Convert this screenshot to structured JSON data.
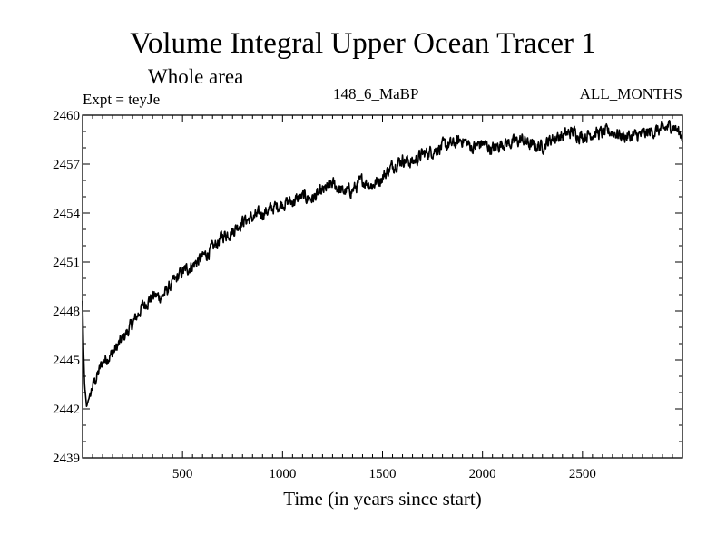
{
  "chart_data": {
    "type": "line",
    "title": "Volume Integral Upper Ocean Tracer 1",
    "subtitle": "Whole area",
    "experiment_label": "Expt = teyJe",
    "run_label": "148_6_MaBP",
    "months_label": "ALL_MONTHS",
    "xlabel": "Time (in years since start)",
    "ylabel": "",
    "xlim": [
      0,
      3000
    ],
    "ylim": [
      2439,
      2460
    ],
    "x_ticks": [
      500,
      1000,
      1500,
      2000,
      2500
    ],
    "x_tick_labels": [
      "500",
      "1000",
      "1500",
      "2000",
      "2500"
    ],
    "y_ticks": [
      2439,
      2442,
      2445,
      2448,
      2451,
      2454,
      2457,
      2460
    ],
    "y_tick_labels": [
      "2439",
      "2442",
      "2445",
      "2448",
      "2451",
      "2454",
      "2457",
      "2460"
    ],
    "grid": false,
    "series": [
      {
        "name": "Tracer 1 volume integral",
        "color": "#000000",
        "x": [
          0,
          5,
          10,
          20,
          30,
          50,
          80,
          100,
          150,
          200,
          250,
          300,
          350,
          400,
          450,
          500,
          550,
          600,
          650,
          700,
          750,
          800,
          850,
          900,
          950,
          1000,
          1050,
          1100,
          1150,
          1200,
          1250,
          1300,
          1350,
          1400,
          1450,
          1500,
          1550,
          1600,
          1650,
          1700,
          1750,
          1800,
          1850,
          1900,
          1950,
          2000,
          2050,
          2100,
          2150,
          2200,
          2250,
          2300,
          2350,
          2400,
          2450,
          2500,
          2550,
          2600,
          2650,
          2700,
          2750,
          2800,
          2850,
          2900,
          2950,
          3000
        ],
        "values": [
          2448.6,
          2445.5,
          2443.5,
          2442.1,
          2442.6,
          2443.4,
          2444.2,
          2444.9,
          2445.4,
          2446.3,
          2447.2,
          2448.3,
          2448.9,
          2448.9,
          2449.7,
          2450.4,
          2450.8,
          2451.3,
          2451.8,
          2452.6,
          2452.9,
          2453.5,
          2453.7,
          2454.0,
          2454.3,
          2454.6,
          2454.7,
          2455.0,
          2454.9,
          2455.3,
          2455.8,
          2455.3,
          2455.4,
          2456.0,
          2455.7,
          2456.2,
          2456.9,
          2457.3,
          2457.1,
          2457.6,
          2457.8,
          2458.1,
          2458.2,
          2458.5,
          2458.0,
          2458.3,
          2457.9,
          2458.3,
          2458.3,
          2458.5,
          2458.1,
          2458.1,
          2458.6,
          2458.7,
          2459.0,
          2458.7,
          2458.9,
          2458.9,
          2459.0,
          2458.7,
          2458.7,
          2458.8,
          2459.0,
          2459.1,
          2459.4,
          2458.7
        ]
      }
    ]
  }
}
